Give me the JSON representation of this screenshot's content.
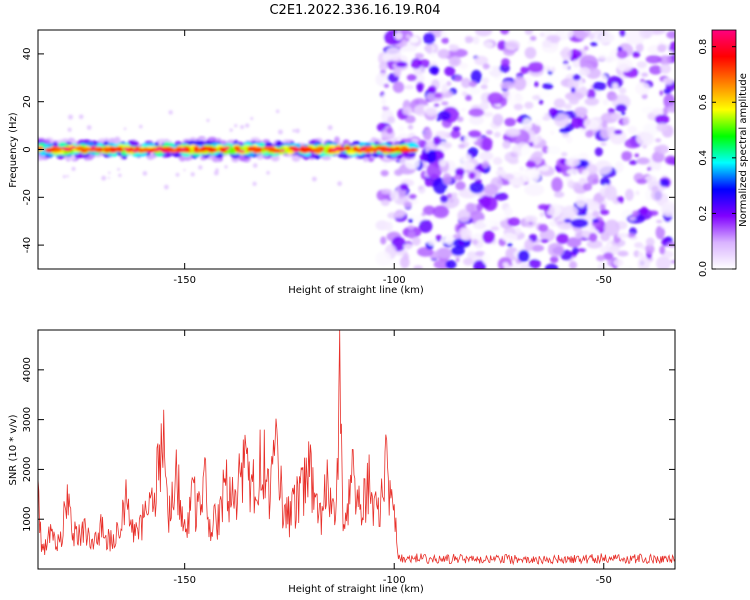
{
  "title": "C2E1.2022.336.16.19.R04",
  "chart_data": [
    {
      "type": "heatmap",
      "xlabel": "Height of straight line (km)",
      "ylabel": "Frequency (Hz)",
      "xlim": [
        -185,
        -33
      ],
      "ylim": [
        -50,
        50
      ],
      "xticks": [
        -150,
        -100,
        -50
      ],
      "yticks": [
        -40,
        -20,
        0,
        20,
        40
      ],
      "signal_band": {
        "x_start": -185,
        "x_end": -95,
        "center_hz": 0,
        "halfwidth_hz": 4
      },
      "noise_region": {
        "x_start": -103,
        "x_end": -33
      },
      "colorbar": {
        "label": "Normalized spectral amplitude",
        "range": [
          0.0,
          0.86
        ],
        "ticks": [
          0.0,
          0.2,
          0.4,
          0.6,
          0.8
        ],
        "colormap": [
          "#ffffff",
          "#d9b3ff",
          "#8000ff",
          "#0000ff",
          "#00ffff",
          "#00ff00",
          "#ffff00",
          "#ff8000",
          "#ff0000",
          "#ff0080"
        ]
      }
    },
    {
      "type": "line",
      "xlabel": "Height of straight line (km)",
      "ylabel": "SNR (10 * v/v)",
      "xlim": [
        -185,
        -33
      ],
      "ylim": [
        0,
        4800
      ],
      "xticks": [
        -150,
        -100,
        -50
      ],
      "yticks": [
        1000,
        2000,
        3000,
        4000
      ],
      "color": "#e8302a",
      "series": [
        {
          "x": [
            -185,
            -184,
            -182,
            -180,
            -178,
            -176,
            -174,
            -172,
            -170,
            -168,
            -166,
            -164,
            -162,
            -160,
            -158,
            -156,
            -155,
            -154,
            -152,
            -150,
            -148,
            -146,
            -145,
            -144,
            -142,
            -140,
            -138,
            -136,
            -134,
            -132,
            -131,
            -130,
            -128,
            -126,
            -124,
            -122,
            -120,
            -118,
            -116,
            -114,
            -113,
            -112,
            -110,
            -108,
            -106,
            -104,
            -102,
            -100,
            -99,
            -95,
            -90,
            -85,
            -80,
            -75,
            -70,
            -65,
            -60,
            -55,
            -50,
            -45,
            -40,
            -35,
            -33
          ],
          "y": [
            1800,
            500,
            900,
            600,
            1700,
            800,
            1000,
            600,
            1100,
            700,
            900,
            1800,
            900,
            1300,
            1500,
            2500,
            3200,
            1100,
            2400,
            1000,
            1800,
            1300,
            2200,
            1000,
            1300,
            2200,
            1600,
            2600,
            1900,
            2800,
            2800,
            2000,
            2800,
            1300,
            1500,
            2000,
            2500,
            1100,
            2200,
            1000,
            4800,
            900,
            2400,
            1300,
            2300,
            1200,
            2700,
            1300,
            200,
            250,
            200,
            220,
            180,
            220,
            200,
            190,
            210,
            200,
            230,
            200,
            220,
            200,
            210
          ]
        }
      ]
    }
  ]
}
